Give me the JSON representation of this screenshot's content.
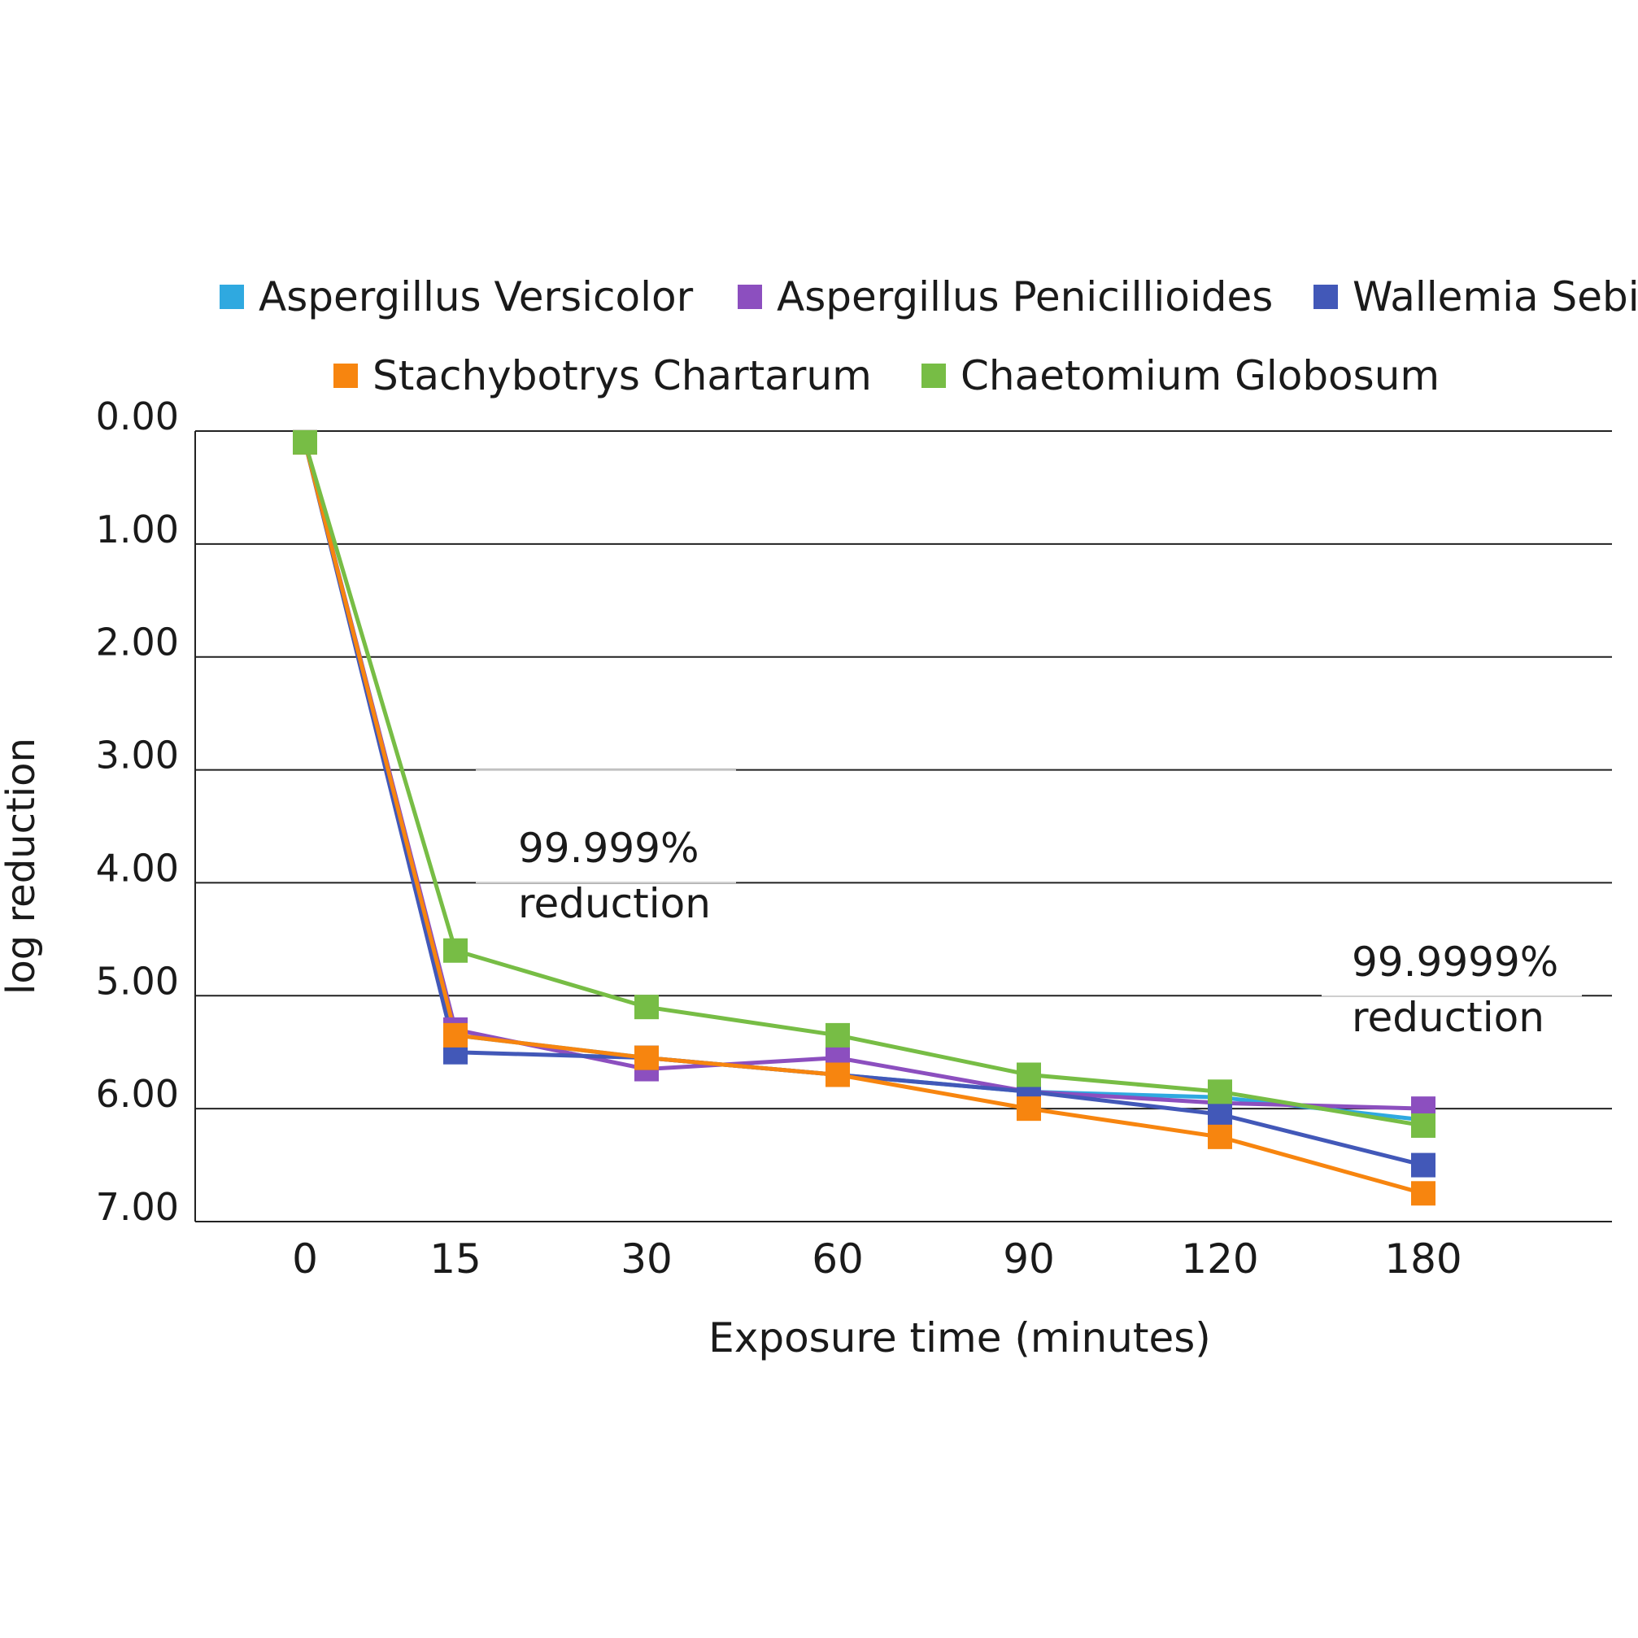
{
  "chart_data": {
    "type": "line",
    "title": "",
    "xlabel": "Exposure time (minutes)",
    "ylabel": "log reduction",
    "categories": [
      "0",
      "15",
      "30",
      "60",
      "90",
      "120",
      "180"
    ],
    "y_ticks": [
      "0.00",
      "1.00",
      "2.00",
      "3.00",
      "4.00",
      "5.00",
      "6.00",
      "7.00"
    ],
    "ylim": [
      0,
      7
    ],
    "y_inverted": true,
    "grid": true,
    "legend_position": "top",
    "series": [
      {
        "name": "Aspergillus Versicolor",
        "color": "#2fa9e0",
        "values": [
          0.1,
          5.35,
          5.55,
          5.7,
          5.85,
          5.9,
          6.1
        ]
      },
      {
        "name": "Aspergillus Penicillioides",
        "color": "#8c4fbf",
        "values": [
          0.1,
          5.3,
          5.65,
          5.55,
          5.85,
          5.95,
          6.0
        ]
      },
      {
        "name": "Wallemia Sebi",
        "color": "#4258b8",
        "values": [
          0.1,
          5.5,
          5.55,
          5.7,
          5.85,
          6.05,
          6.5
        ]
      },
      {
        "name": "Stachybotrys Chartarum",
        "color": "#f7850f",
        "values": [
          0.1,
          5.35,
          5.55,
          5.7,
          6.0,
          6.25,
          6.75
        ]
      },
      {
        "name": "Chaetomium Globosum",
        "color": "#77bd45",
        "values": [
          0.1,
          4.6,
          5.1,
          5.35,
          5.7,
          5.85,
          6.15
        ]
      }
    ],
    "annotations": [
      {
        "lines": [
          "99.999%",
          "reduction"
        ],
        "x_category": "15-30",
        "y": 4.3
      },
      {
        "lines": [
          "99.9999%",
          "reduction"
        ],
        "x_category": "180",
        "y": 5.3
      }
    ]
  }
}
